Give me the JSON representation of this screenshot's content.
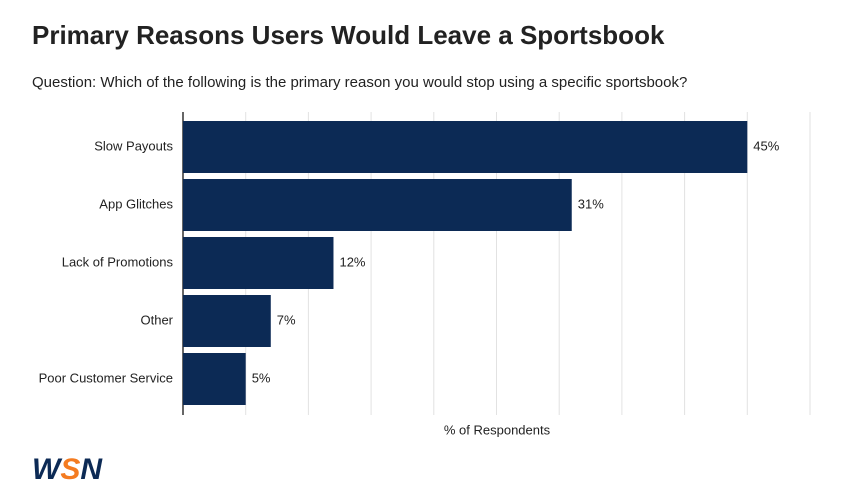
{
  "chart_data": {
    "type": "bar",
    "orientation": "horizontal",
    "title": "Primary Reasons Users Would Leave a Sportsbook",
    "subtitle": "Question: Which of the following is the primary reason you would stop using a specific sportsbook?",
    "categories": [
      "Slow Payouts",
      "App Glitches",
      "Lack of Promotions",
      "Other",
      "Poor Customer Service"
    ],
    "values": [
      45,
      31,
      12,
      7,
      5
    ],
    "value_labels": [
      "45%",
      "31%",
      "12%",
      "7%",
      "5%"
    ],
    "color": "#0c2a55",
    "xlabel": "% of Respondents",
    "xlim": [
      0,
      50
    ],
    "xticks": [
      0,
      5,
      10,
      15,
      20,
      25,
      30,
      35,
      40,
      45,
      50
    ],
    "grid": true
  },
  "logo": {
    "parts": [
      "W",
      "S",
      "N"
    ],
    "colors": [
      "#0c2a55",
      "#f47b20",
      "#0c2a55"
    ]
  }
}
